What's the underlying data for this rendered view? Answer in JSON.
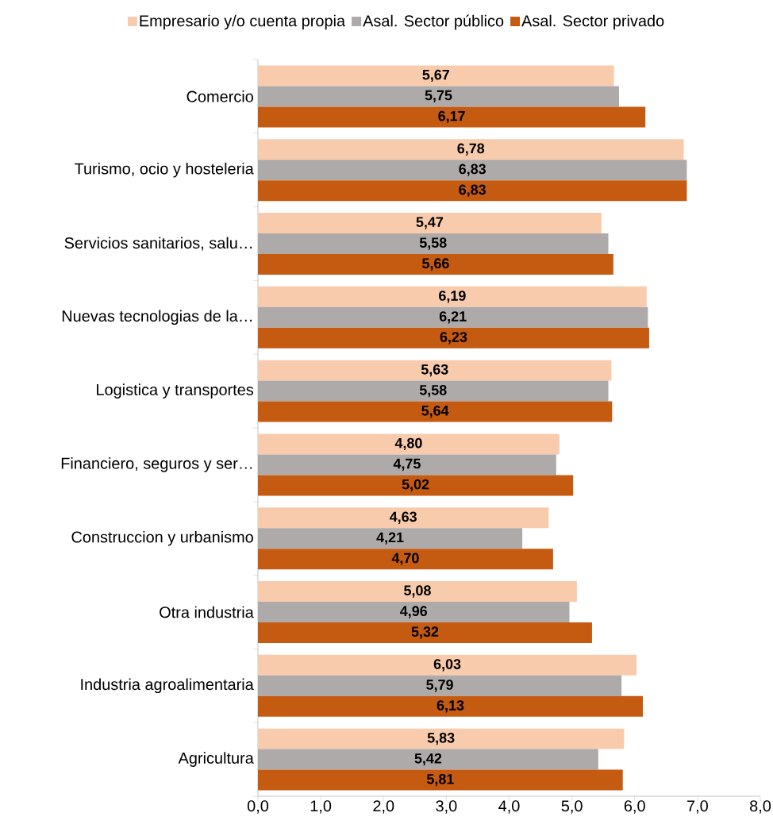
{
  "chart_data": {
    "type": "bar",
    "orientation": "horizontal",
    "legend": "top",
    "grid": false,
    "categories": [
      "Comercio",
      "Turismo, ocio y hosteleria",
      "Servicios sanitarios, salu…",
      "Nuevas tecnologias de la…",
      "Logistica y transportes",
      "Financiero, seguros y ser…",
      "Construccion y urbanismo",
      "Otra industria",
      "Industria agroalimentaria",
      "Agricultura"
    ],
    "xlim": [
      0,
      8
    ],
    "xticks": [
      {
        "value": 0,
        "label": "0,0"
      },
      {
        "value": 1,
        "label": "1,0"
      },
      {
        "value": 2,
        "label": "2,0"
      },
      {
        "value": 3,
        "label": "3,0"
      },
      {
        "value": 4,
        "label": "4,0"
      },
      {
        "value": 5,
        "label": "5,0"
      },
      {
        "value": 6,
        "label": "6,0"
      },
      {
        "value": 7,
        "label": "7,0"
      },
      {
        "value": 8,
        "label": "8,0"
      }
    ],
    "series": [
      {
        "name": "Empresario y/o cuenta propia",
        "color": "#f8cbad",
        "values": [
          5.67,
          6.78,
          5.47,
          6.19,
          5.63,
          4.8,
          4.63,
          5.08,
          6.03,
          5.83
        ],
        "value_labels": [
          "5,67",
          "6,78",
          "5,47",
          "6,19",
          "5,63",
          "4,80",
          "4,63",
          "5,08",
          "6,03",
          "5,83"
        ]
      },
      {
        "name": "Asal. Sector público",
        "color": "#aeaaaa",
        "values": [
          5.75,
          6.83,
          5.58,
          6.21,
          5.58,
          4.75,
          4.21,
          4.96,
          5.79,
          5.42
        ],
        "value_labels": [
          "5,75",
          "6,83",
          "5,58",
          "6,21",
          "5,58",
          "4,75",
          "4,21",
          "4,96",
          "5,79",
          "5,42"
        ]
      },
      {
        "name": "Asal. Sector privado",
        "color": "#c55a11",
        "values": [
          6.17,
          6.83,
          5.66,
          6.23,
          5.64,
          5.02,
          4.7,
          5.32,
          6.13,
          5.81
        ],
        "value_labels": [
          "6,17",
          "6,83",
          "5,66",
          "6,23",
          "5,64",
          "5,02",
          "4,70",
          "5,32",
          "6,13",
          "5,81"
        ]
      }
    ]
  }
}
